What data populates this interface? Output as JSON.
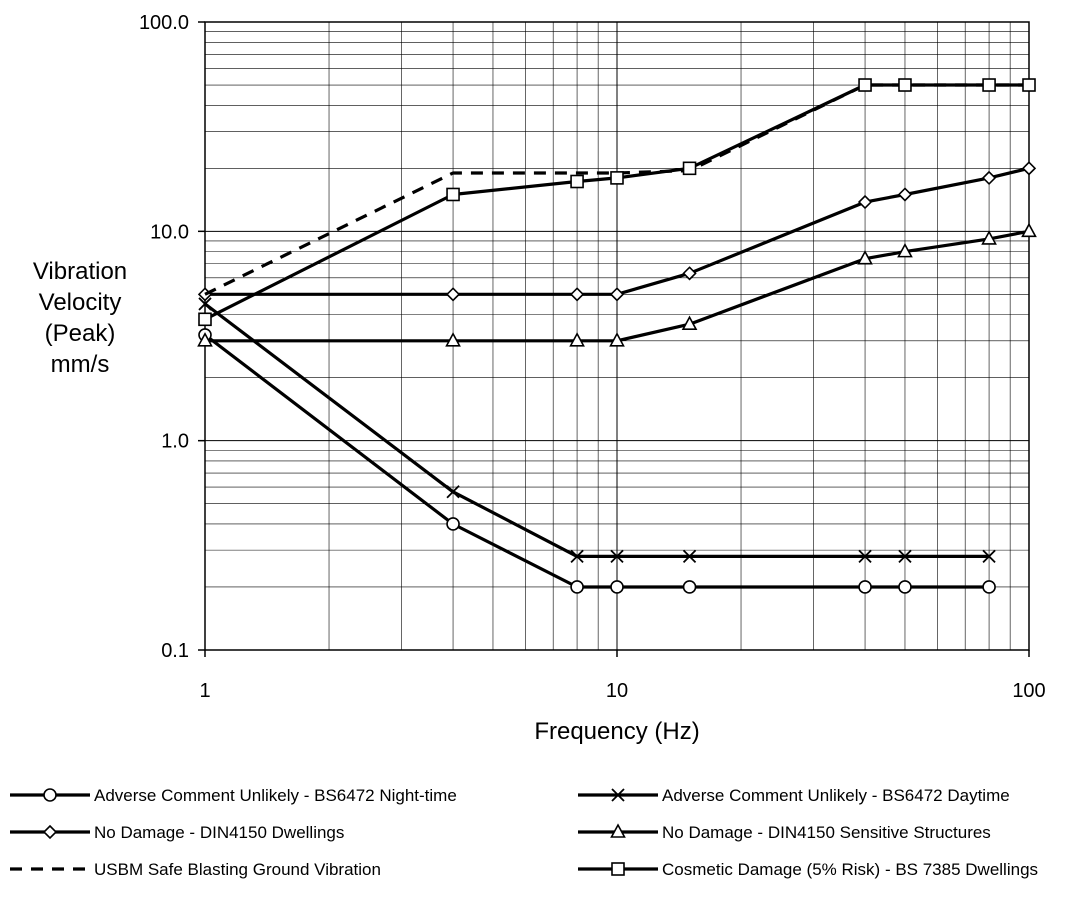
{
  "chart_data": {
    "type": "line",
    "title": "",
    "xlabel": "Frequency (Hz)",
    "ylabel": [
      "Vibration",
      "Velocity",
      "(Peak)",
      "mm/s"
    ],
    "x_scale": "log",
    "y_scale": "log",
    "xlim": [
      1,
      100
    ],
    "ylim": [
      0.1,
      100
    ],
    "x_ticks": [
      "1",
      "10",
      "100"
    ],
    "y_ticks": [
      "0.1",
      "1.0",
      "10.0",
      "100.0"
    ],
    "grid": true,
    "legend_position": "bottom",
    "series": [
      {
        "name": "Adverse Comment Unlikely - BS6472 Night-time",
        "marker": "circle",
        "dash": "solid",
        "x": [
          1,
          4,
          8,
          10,
          15,
          40,
          50,
          80
        ],
        "y": [
          3.2,
          0.4,
          0.2,
          0.2,
          0.2,
          0.2,
          0.2,
          0.2
        ]
      },
      {
        "name": "Adverse Comment Unlikely - BS6472  Daytime",
        "marker": "x",
        "dash": "solid",
        "x": [
          1,
          4,
          8,
          10,
          15,
          40,
          50,
          80
        ],
        "y": [
          4.5,
          0.57,
          0.28,
          0.28,
          0.28,
          0.28,
          0.28,
          0.28
        ]
      },
      {
        "name": "No Damage - DIN4150 Dwellings",
        "marker": "diamond",
        "dash": "solid",
        "x": [
          1,
          4,
          8,
          10,
          15,
          40,
          50,
          80,
          100
        ],
        "y": [
          5,
          5,
          5,
          5,
          6.3,
          13.8,
          15,
          18,
          20
        ]
      },
      {
        "name": "No Damage - DIN4150 Sensitive Structures",
        "marker": "triangle",
        "dash": "solid",
        "x": [
          1,
          4,
          8,
          10,
          15,
          40,
          50,
          80,
          100
        ],
        "y": [
          3,
          3,
          3,
          3,
          3.6,
          7.4,
          8,
          9.2,
          10
        ]
      },
      {
        "name": "USBM Safe Blasting Ground Vibration",
        "marker": "none",
        "dash": "dashed",
        "x": [
          1,
          4,
          8,
          10,
          15,
          40,
          50,
          80,
          100
        ],
        "y": [
          5,
          19,
          19,
          19,
          19.5,
          50,
          50,
          50,
          50
        ]
      },
      {
        "name": "Cosmetic Damage (5% Risk) - BS 7385 Dwellings",
        "marker": "square",
        "dash": "solid",
        "x": [
          1,
          4,
          8,
          10,
          15,
          40,
          50,
          80,
          100
        ],
        "y": [
          3.8,
          15,
          17.3,
          18,
          20,
          50,
          50,
          50,
          50
        ]
      }
    ]
  }
}
